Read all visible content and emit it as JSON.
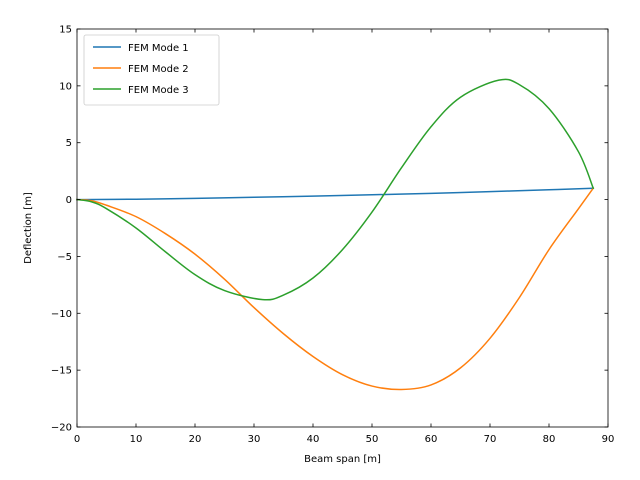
{
  "chart_data": {
    "type": "line",
    "title": "",
    "xlabel": "Beam span [m]",
    "ylabel": "Deflection [m]",
    "xlim": [
      0,
      90
    ],
    "ylim": [
      -20,
      15
    ],
    "xticks": [
      0,
      10,
      20,
      30,
      40,
      50,
      60,
      70,
      80,
      90
    ],
    "yticks": [
      -20,
      -15,
      -10,
      -5,
      0,
      5,
      10,
      15
    ],
    "xtick_labels": [
      "0",
      "10",
      "20",
      "30",
      "40",
      "50",
      "60",
      "70",
      "80",
      "90"
    ],
    "ytick_labels": [
      "−20",
      "−15",
      "−10",
      "−5",
      "0",
      "5",
      "10",
      "15"
    ],
    "grid": false,
    "legend_position": "top-left",
    "series": [
      {
        "name": "FEM Mode 1",
        "color": "#1f77b4",
        "x": [
          0,
          10,
          20,
          30,
          40,
          50,
          60,
          70,
          80,
          87.5
        ],
        "y": [
          0.0,
          0.03,
          0.1,
          0.2,
          0.3,
          0.42,
          0.55,
          0.7,
          0.86,
          1.0
        ]
      },
      {
        "name": "FEM Mode 2",
        "color": "#ff7f0e",
        "x": [
          0,
          2.5,
          5,
          10,
          15,
          20,
          25,
          30,
          35,
          40,
          45,
          50,
          55,
          60,
          65,
          70,
          75,
          80,
          85,
          87.5
        ],
        "y": [
          0.0,
          -0.1,
          -0.5,
          -1.5,
          -3.0,
          -4.8,
          -7.0,
          -9.5,
          -11.8,
          -13.8,
          -15.4,
          -16.4,
          -16.7,
          -16.3,
          -14.8,
          -12.2,
          -8.6,
          -4.4,
          -0.8,
          1.0
        ]
      },
      {
        "name": "FEM Mode 3",
        "color": "#2ca02c",
        "x": [
          0,
          2.5,
          5,
          10,
          15,
          20,
          25,
          31.5,
          35,
          40,
          45,
          50,
          55,
          60,
          65,
          71.5,
          75,
          80,
          85,
          87.5
        ],
        "y": [
          0.0,
          -0.2,
          -0.8,
          -2.5,
          -4.6,
          -6.6,
          -8.0,
          -8.8,
          -8.4,
          -6.9,
          -4.4,
          -1.1,
          2.8,
          6.4,
          9.0,
          10.5,
          10.1,
          8.0,
          4.2,
          1.0
        ]
      }
    ]
  }
}
